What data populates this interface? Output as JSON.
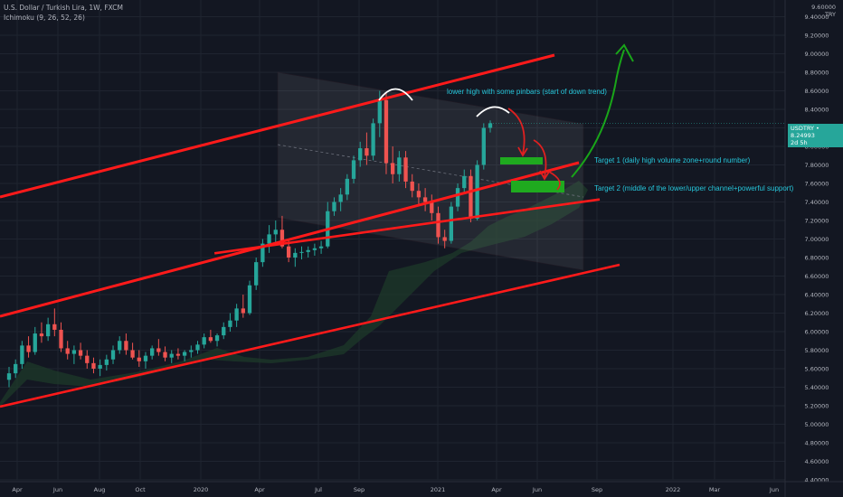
{
  "header": {
    "symbol": "U.S. Dollar / Turkish Lira, 1W, FXCM",
    "indicator": "Ichimoku (9, 26, 52, 26)"
  },
  "axis": {
    "currency_top": "9.60000",
    "currency": "TRY"
  },
  "price_tag": {
    "symbol": "USDTRY",
    "value": "8.24993",
    "countdown": "2d 5h"
  },
  "annotations": {
    "lower_high": "lower high with some pinbars (start of down trend)",
    "target1": "Target 1 (daily high volume zone+round number)",
    "target2": "Target 2 (middle of the lower/upper channel+powerful support)"
  },
  "colors": {
    "background": "#131722",
    "up": "#26a69a",
    "down": "#ef5350",
    "trend_line": "#ff1a1a",
    "target_box": "#1faa1f",
    "annotation_text": "#26c6da",
    "arrow_green": "#19a519",
    "arrow_red": "#e02020",
    "cloud": "#1e3a2a"
  },
  "chart_data": {
    "type": "candlestick",
    "y_axis": {
      "ylim": [
        4.4,
        9.6
      ],
      "ticks": [
        "4.40000",
        "4.60000",
        "4.80000",
        "5.00000",
        "5.20000",
        "5.40000",
        "5.60000",
        "5.80000",
        "6.00000",
        "6.20000",
        "6.40000",
        "6.60000",
        "6.80000",
        "7.00000",
        "7.20000",
        "7.40000",
        "7.60000",
        "7.80000",
        "8.00000",
        "8.20000",
        "8.40000",
        "8.60000",
        "8.80000",
        "9.00000",
        "9.20000",
        "9.40000"
      ]
    },
    "x_axis": {
      "ticks": [
        "Apr",
        "Jun",
        "Aug",
        "Oct",
        "2020",
        "Apr",
        "Jul",
        "Sep",
        "2021",
        "Apr",
        "Jun",
        "Sep",
        "2022",
        "Mar",
        "Jun"
      ]
    },
    "series": [
      {
        "values": [
          [
            5.48,
            5.62,
            5.4,
            5.55
          ],
          [
            5.55,
            5.7,
            5.5,
            5.65
          ],
          [
            5.65,
            5.9,
            5.6,
            5.85
          ],
          [
            5.85,
            5.95,
            5.72,
            5.78
          ],
          [
            5.78,
            6.05,
            5.75,
            5.98
          ],
          [
            5.98,
            6.1,
            5.88,
            5.95
          ],
          [
            5.95,
            6.15,
            5.9,
            6.08
          ],
          [
            6.08,
            6.25,
            5.95,
            6.02
          ],
          [
            6.02,
            6.1,
            5.78,
            5.82
          ],
          [
            5.82,
            5.9,
            5.7,
            5.76
          ],
          [
            5.76,
            5.85,
            5.65,
            5.8
          ],
          [
            5.8,
            5.88,
            5.7,
            5.74
          ],
          [
            5.74,
            5.8,
            5.6,
            5.66
          ],
          [
            5.66,
            5.72,
            5.55,
            5.6
          ],
          [
            5.6,
            5.7,
            5.52,
            5.64
          ],
          [
            5.64,
            5.75,
            5.58,
            5.7
          ],
          [
            5.7,
            5.85,
            5.65,
            5.8
          ],
          [
            5.8,
            5.95,
            5.76,
            5.9
          ],
          [
            5.9,
            5.98,
            5.75,
            5.8
          ],
          [
            5.8,
            5.88,
            5.7,
            5.72
          ],
          [
            5.72,
            5.8,
            5.62,
            5.68
          ],
          [
            5.68,
            5.78,
            5.6,
            5.74
          ],
          [
            5.74,
            5.85,
            5.7,
            5.82
          ],
          [
            5.82,
            5.92,
            5.74,
            5.78
          ],
          [
            5.78,
            5.84,
            5.68,
            5.72
          ],
          [
            5.72,
            5.8,
            5.66,
            5.76
          ],
          [
            5.76,
            5.82,
            5.7,
            5.74
          ],
          [
            5.74,
            5.8,
            5.68,
            5.78
          ],
          [
            5.78,
            5.85,
            5.72,
            5.8
          ],
          [
            5.8,
            5.9,
            5.76,
            5.86
          ],
          [
            5.86,
            5.98,
            5.82,
            5.94
          ],
          [
            5.94,
            6.02,
            5.88,
            5.9
          ],
          [
            5.9,
            5.98,
            5.84,
            5.96
          ],
          [
            5.96,
            6.1,
            5.92,
            6.05
          ],
          [
            6.05,
            6.2,
            6.0,
            6.12
          ],
          [
            6.12,
            6.3,
            6.05,
            6.25
          ],
          [
            6.25,
            6.4,
            6.15,
            6.2
          ],
          [
            6.2,
            6.55,
            6.18,
            6.5
          ],
          [
            6.5,
            6.8,
            6.45,
            6.75
          ],
          [
            6.75,
            7.0,
            6.7,
            6.95
          ],
          [
            6.95,
            7.15,
            6.85,
            7.05
          ],
          [
            7.05,
            7.2,
            6.95,
            7.1
          ],
          [
            7.1,
            7.25,
            6.9,
            6.92
          ],
          [
            6.92,
            7.0,
            6.75,
            6.8
          ],
          [
            6.8,
            6.9,
            6.7,
            6.85
          ],
          [
            6.85,
            6.92,
            6.78,
            6.86
          ],
          [
            6.86,
            6.92,
            6.8,
            6.88
          ],
          [
            6.88,
            6.95,
            6.82,
            6.9
          ],
          [
            6.9,
            6.98,
            6.84,
            6.92
          ],
          [
            6.92,
            7.4,
            6.9,
            7.3
          ],
          [
            7.3,
            7.45,
            7.25,
            7.4
          ],
          [
            7.4,
            7.55,
            7.3,
            7.48
          ],
          [
            7.48,
            7.7,
            7.42,
            7.65
          ],
          [
            7.65,
            7.9,
            7.6,
            7.85
          ],
          [
            7.85,
            8.05,
            7.78,
            7.98
          ],
          [
            7.98,
            8.15,
            7.8,
            7.9
          ],
          [
            7.9,
            8.3,
            7.85,
            8.25
          ],
          [
            8.25,
            8.6,
            8.1,
            8.5
          ],
          [
            8.5,
            8.58,
            7.7,
            7.82
          ],
          [
            7.82,
            8.0,
            7.6,
            7.7
          ],
          [
            7.7,
            7.95,
            7.62,
            7.88
          ],
          [
            7.88,
            7.95,
            7.55,
            7.62
          ],
          [
            7.62,
            7.7,
            7.45,
            7.52
          ],
          [
            7.52,
            7.6,
            7.38,
            7.45
          ],
          [
            7.45,
            7.55,
            7.3,
            7.4
          ],
          [
            7.4,
            7.48,
            7.2,
            7.28
          ],
          [
            7.28,
            7.35,
            6.95,
            7.02
          ],
          [
            7.02,
            7.1,
            6.9,
            6.98
          ],
          [
            6.98,
            7.4,
            6.95,
            7.35
          ],
          [
            7.35,
            7.6,
            7.3,
            7.55
          ],
          [
            7.55,
            7.75,
            7.5,
            7.68
          ],
          [
            7.68,
            7.75,
            7.18,
            7.22
          ],
          [
            7.22,
            7.85,
            7.2,
            7.8
          ],
          [
            7.8,
            8.25,
            7.75,
            8.2
          ],
          [
            8.2,
            8.28,
            8.15,
            8.25
          ]
        ]
      }
    ]
  }
}
